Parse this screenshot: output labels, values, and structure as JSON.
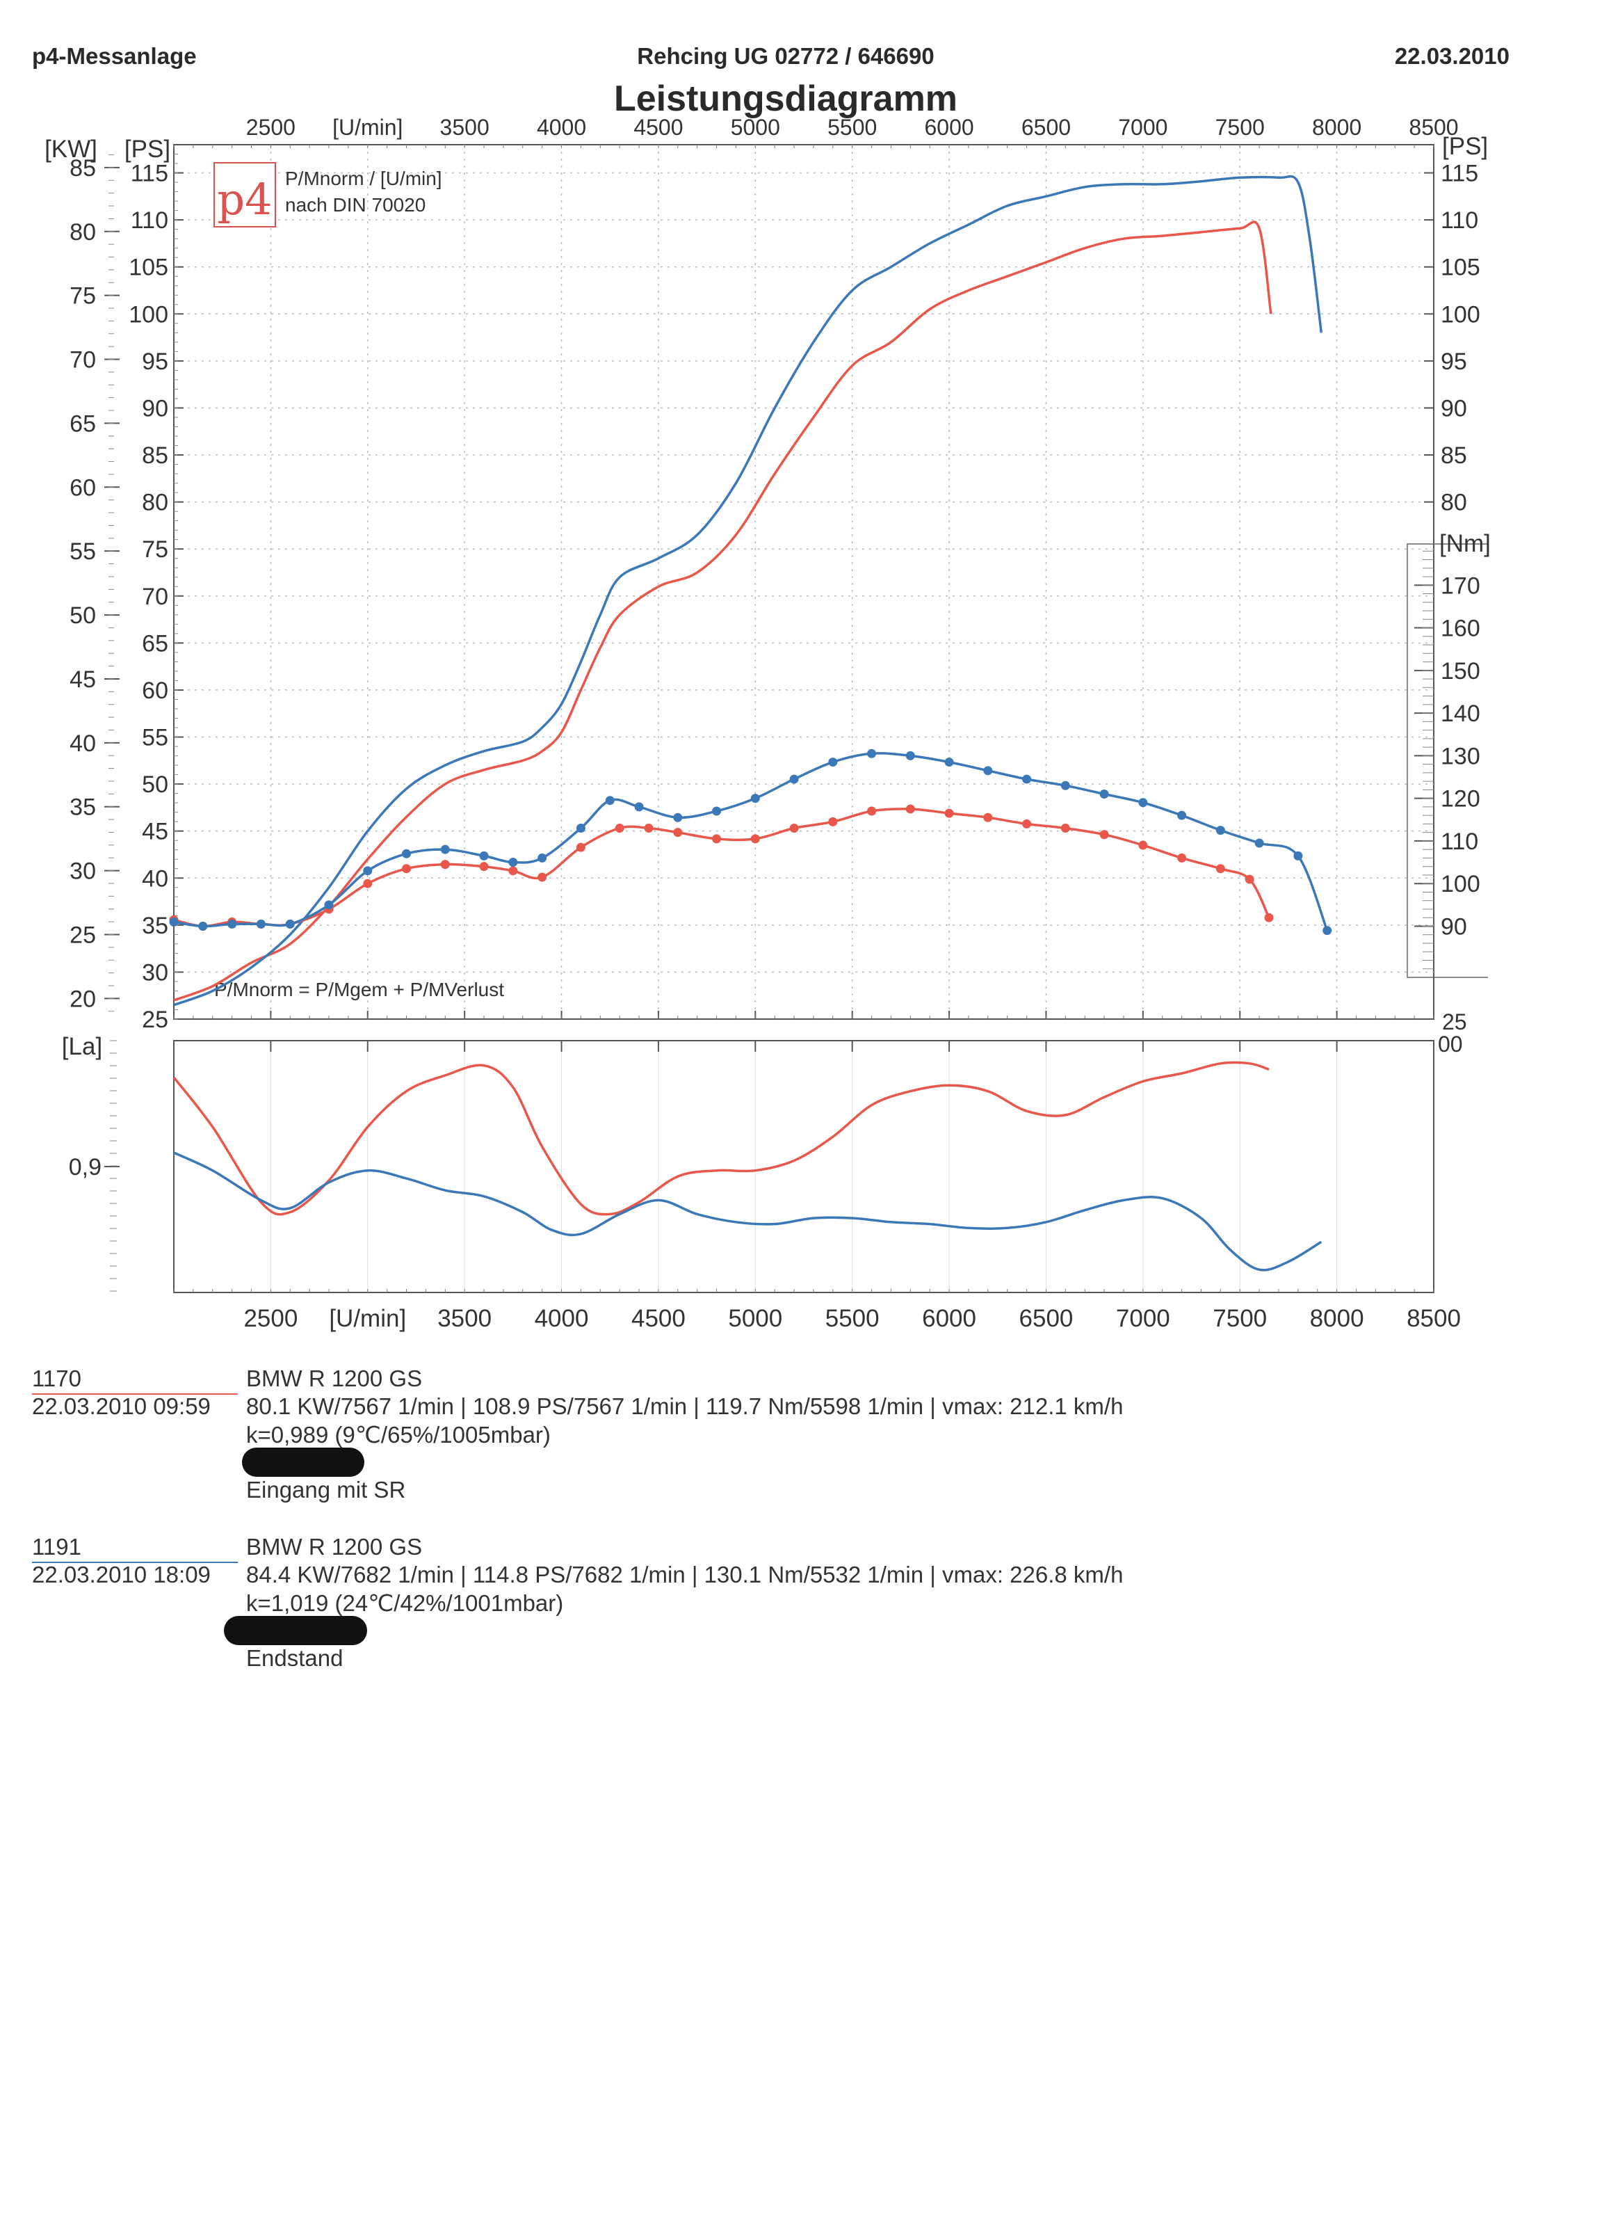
{
  "header": {
    "left": "p4-Messanlage",
    "center": "Rehcing UG  02772 / 646690",
    "right": "22.03.2010",
    "title": "Leistungsdiagramm"
  },
  "chart_data": {
    "type": "line",
    "title": "Leistungsdiagramm",
    "xlabel": "[U/min]",
    "x_ticks": [
      2500,
      3000,
      3500,
      4000,
      4500,
      5000,
      5500,
      6000,
      6500,
      7000,
      7500,
      8000,
      8500
    ],
    "x_tick_labels": [
      "2500",
      "[U/min]",
      "3500",
      "4000",
      "4500",
      "5000",
      "5500",
      "6000",
      "6500",
      "7000",
      "7500",
      "8000",
      "8500"
    ],
    "xlim": [
      2000,
      8500
    ],
    "power_axis": {
      "left_kw_label": "[KW]",
      "left_kw_ticks": [
        20,
        25,
        30,
        35,
        40,
        45,
        50,
        55,
        60,
        65,
        70,
        75,
        80,
        85
      ],
      "ps_label": "[PS]",
      "ps_ticks": [
        25,
        30,
        35,
        40,
        45,
        50,
        55,
        60,
        65,
        70,
        75,
        80,
        85,
        90,
        95,
        100,
        105,
        110,
        115
      ],
      "ylim_ps": [
        25,
        118
      ]
    },
    "torque_axis": {
      "label": "[Nm]",
      "ticks": [
        90,
        100,
        110,
        120,
        130,
        140,
        150,
        160,
        170
      ],
      "ylim": [
        78,
        180
      ]
    },
    "lambda_axis": {
      "label": "[La]",
      "ticks": [
        0.9
      ],
      "tick_labels": [
        "0,9"
      ],
      "ylim": [
        0.84,
        0.96
      ]
    },
    "legend_box": {
      "logo": "p4",
      "line1": "P/Mnorm / [U/min]",
      "line2": "nach DIN 70020"
    },
    "formula": "P/Mnorm = P/Mgem + P/MVerlust",
    "bottom_right_labels": [
      "25",
      "00"
    ],
    "series": [
      {
        "name": "1170 power",
        "color": "#e8574a",
        "axis": "ps",
        "x": [
          2000,
          2200,
          2400,
          2600,
          2800,
          3000,
          3200,
          3400,
          3600,
          3800,
          3900,
          4000,
          4100,
          4200,
          4300,
          4500,
          4700,
          4900,
          5100,
          5300,
          5500,
          5700,
          5900,
          6100,
          6300,
          6500,
          6700,
          6900,
          7100,
          7300,
          7500,
          7600,
          7660
        ],
        "values": [
          27,
          28.5,
          31,
          33,
          37,
          42,
          46.5,
          50,
          51.5,
          52.5,
          53.5,
          55.5,
          60,
          64.5,
          68,
          71,
          72.5,
          76.5,
          83,
          89,
          94.5,
          97,
          100.5,
          102.5,
          104,
          105.5,
          107,
          108,
          108.3,
          108.7,
          109.1,
          109.1,
          100
        ]
      },
      {
        "name": "1191 power",
        "color": "#3a78b8",
        "axis": "ps",
        "x": [
          2000,
          2200,
          2400,
          2600,
          2800,
          3000,
          3200,
          3400,
          3600,
          3800,
          3900,
          4000,
          4100,
          4200,
          4300,
          4500,
          4700,
          4900,
          5100,
          5300,
          5500,
          5700,
          5900,
          6100,
          6300,
          6500,
          6700,
          6900,
          7100,
          7300,
          7500,
          7700,
          7800,
          7860,
          7920
        ],
        "values": [
          26.5,
          28,
          30.5,
          34,
          39,
          45,
          49.5,
          52,
          53.5,
          54.5,
          56,
          58.5,
          63,
          68,
          72,
          74,
          76.5,
          82,
          90,
          97,
          102.5,
          105,
          107.5,
          109.5,
          111.5,
          112.5,
          113.5,
          113.8,
          113.8,
          114.1,
          114.5,
          114.5,
          114,
          108,
          98
        ]
      },
      {
        "name": "1170 torque",
        "color": "#e8574a",
        "axis": "nm",
        "markers": true,
        "x": [
          2000,
          2150,
          2300,
          2450,
          2600,
          2800,
          3000,
          3200,
          3400,
          3600,
          3750,
          3900,
          4100,
          4300,
          4450,
          4600,
          4800,
          5000,
          5200,
          5400,
          5600,
          5800,
          6000,
          6200,
          6400,
          6600,
          6800,
          7000,
          7200,
          7400,
          7550,
          7650
        ],
        "values": [
          91.5,
          90,
          91,
          90.5,
          90.5,
          94,
          100,
          103.5,
          104.5,
          104,
          103,
          101.5,
          108.5,
          113,
          113,
          112,
          110.5,
          110.5,
          113,
          114.5,
          117,
          117.5,
          116.5,
          115.5,
          114,
          113,
          111.5,
          109,
          106,
          103.5,
          101,
          92
        ]
      },
      {
        "name": "1191 torque",
        "color": "#3a78b8",
        "axis": "nm",
        "markers": true,
        "x": [
          2000,
          2150,
          2300,
          2450,
          2600,
          2800,
          3000,
          3200,
          3400,
          3600,
          3750,
          3900,
          4100,
          4250,
          4400,
          4600,
          4800,
          5000,
          5200,
          5400,
          5600,
          5800,
          6000,
          6200,
          6400,
          6600,
          6800,
          7000,
          7200,
          7400,
          7600,
          7800,
          7950
        ],
        "values": [
          91,
          90,
          90.5,
          90.5,
          90.5,
          95,
          103,
          107,
          108,
          106.5,
          105,
          106,
          113,
          119.5,
          118,
          115.5,
          117,
          120,
          124.5,
          128.5,
          130.5,
          130,
          128.5,
          126.5,
          124.5,
          123,
          121,
          119,
          116,
          112.5,
          109.5,
          106.5,
          89
        ]
      },
      {
        "name": "1170 lambda",
        "color": "#e8574a",
        "axis": "la",
        "x": [
          2000,
          2200,
          2450,
          2600,
          2800,
          3000,
          3200,
          3400,
          3600,
          3750,
          3900,
          4100,
          4250,
          4400,
          4600,
          4800,
          5000,
          5200,
          5400,
          5600,
          5800,
          6000,
          6200,
          6400,
          6600,
          6800,
          7000,
          7200,
          7400,
          7550,
          7650
        ],
        "values": [
          0.945,
          0.92,
          0.882,
          0.877,
          0.893,
          0.92,
          0.938,
          0.946,
          0.951,
          0.94,
          0.91,
          0.881,
          0.876,
          0.882,
          0.895,
          0.898,
          0.898,
          0.903,
          0.915,
          0.931,
          0.938,
          0.941,
          0.938,
          0.928,
          0.926,
          0.935,
          0.943,
          0.947,
          0.952,
          0.952,
          0.949
        ]
      },
      {
        "name": "1191 lambda",
        "color": "#3a78b8",
        "axis": "la",
        "x": [
          2000,
          2200,
          2450,
          2600,
          2800,
          3000,
          3200,
          3400,
          3600,
          3800,
          3950,
          4100,
          4300,
          4500,
          4700,
          4900,
          5100,
          5300,
          5500,
          5700,
          5900,
          6100,
          6300,
          6500,
          6700,
          6900,
          7100,
          7300,
          7450,
          7600,
          7750,
          7920
        ],
        "values": [
          0.907,
          0.898,
          0.883,
          0.879,
          0.892,
          0.898,
          0.894,
          0.888,
          0.885,
          0.877,
          0.868,
          0.866,
          0.876,
          0.883,
          0.876,
          0.872,
          0.871,
          0.874,
          0.874,
          0.872,
          0.871,
          0.869,
          0.869,
          0.872,
          0.878,
          0.883,
          0.884,
          0.874,
          0.858,
          0.848,
          0.852,
          0.862
        ]
      }
    ]
  },
  "runs": [
    {
      "id": "1170",
      "color": "#e8574a",
      "vehicle": "BMW R 1200 GS",
      "datetime": "22.03.2010  09:59",
      "values": "80.1 KW/7567 1/min  |  108.9 PS/7567 1/min  |  119.7 Nm/5598 1/min | vmax: 212.1 km/h",
      "correction": "k=0,989 (9℃/65%/1005mbar)",
      "note": "Eingang mit SR"
    },
    {
      "id": "1191",
      "color": "#3a78b8",
      "vehicle": "BMW R 1200 GS",
      "datetime": "22.03.2010  18:09",
      "values": "84.4 KW/7682 1/min  |  114.8 PS/7682 1/min  |  130.1 Nm/5532 1/min | vmax: 226.8 km/h",
      "correction": "k=1,019 (24℃/42%/1001mbar)",
      "note": "Endstand"
    }
  ]
}
